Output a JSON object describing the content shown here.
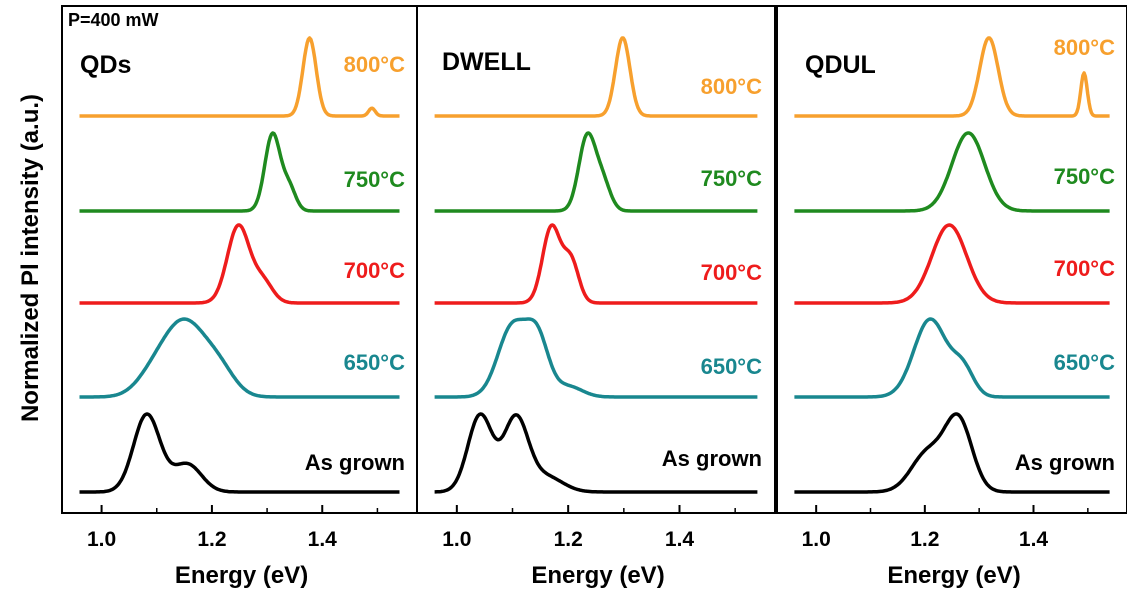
{
  "figure": {
    "ylabel": "Normalized Pl intensity (a.u.)",
    "power_label": "P=400 mW",
    "colors": {
      "800°C": "#f7a02e",
      "750°C": "#1f8a1f",
      "700°C": "#ee1c1c",
      "650°C": "#19878f",
      "As grown": "#000000"
    }
  },
  "chart_data": [
    {
      "type": "line",
      "title": "QDs",
      "xlabel": "Energy (eV)",
      "xlim": [
        0.95,
        1.55
      ],
      "xticks": [
        1.0,
        1.2,
        1.4
      ],
      "xtick_labels": [
        "1.0",
        "1.2",
        "1.4"
      ],
      "series": [
        {
          "name": "As grown",
          "peaks": [
            [
              1.082,
              1.0,
              0.024
            ],
            [
              1.155,
              0.36,
              0.026
            ]
          ]
        },
        {
          "name": "650°C",
          "peaks": [
            [
              1.15,
              1.0,
              0.04
            ],
            [
              1.215,
              0.28,
              0.028
            ],
            [
              1.09,
              0.18,
              0.03
            ]
          ]
        },
        {
          "name": "700°C",
          "peaks": [
            [
              1.248,
              1.0,
              0.02
            ],
            [
              1.292,
              0.28,
              0.018
            ]
          ]
        },
        {
          "name": "750°C",
          "peaks": [
            [
              1.31,
              1.0,
              0.014
            ],
            [
              1.34,
              0.3,
              0.012
            ]
          ]
        },
        {
          "name": "800°C",
          "peaks": [
            [
              1.377,
              1.0,
              0.012
            ],
            [
              1.49,
              0.1,
              0.006
            ]
          ]
        }
      ]
    },
    {
      "type": "line",
      "title": "DWELL",
      "xlabel": "Energy (eV)",
      "xlim": [
        0.95,
        1.55
      ],
      "xticks": [
        1.0,
        1.2,
        1.4
      ],
      "xtick_labels": [
        "1.0",
        "1.2",
        "1.4"
      ],
      "series": [
        {
          "name": "As grown",
          "peaks": [
            [
              1.042,
              1.0,
              0.022
            ],
            [
              1.106,
              0.95,
              0.022
            ],
            [
              1.16,
              0.2,
              0.03
            ]
          ]
        },
        {
          "name": "650°C",
          "peaks": [
            [
              1.1,
              1.0,
              0.026
            ],
            [
              1.145,
              0.78,
              0.02
            ],
            [
              1.2,
              0.15,
              0.025
            ]
          ]
        },
        {
          "name": "700°C",
          "peaks": [
            [
              1.17,
              1.0,
              0.016
            ],
            [
              1.205,
              0.55,
              0.014
            ]
          ]
        },
        {
          "name": "750°C",
          "peaks": [
            [
              1.234,
              1.0,
              0.015
            ],
            [
              1.262,
              0.38,
              0.014
            ]
          ]
        },
        {
          "name": "800°C",
          "peaks": [
            [
              1.298,
              1.0,
              0.013
            ]
          ]
        }
      ]
    },
    {
      "type": "line",
      "title": "QDUL",
      "xlabel": "Energy (eV)",
      "xlim": [
        0.95,
        1.55
      ],
      "xticks": [
        1.0,
        1.2,
        1.4
      ],
      "xtick_labels": [
        "1.0",
        "1.2",
        "1.4"
      ],
      "series": [
        {
          "name": "As grown",
          "peaks": [
            [
              1.262,
              1.0,
              0.025
            ],
            [
              1.205,
              0.55,
              0.03
            ]
          ]
        },
        {
          "name": "650°C",
          "peaks": [
            [
              1.21,
              1.0,
              0.03
            ],
            [
              1.27,
              0.35,
              0.02
            ]
          ]
        },
        {
          "name": "700°C",
          "peaks": [
            [
              1.245,
              1.0,
              0.032
            ]
          ]
        },
        {
          "name": "750°C",
          "peaks": [
            [
              1.28,
              1.0,
              0.03
            ]
          ]
        },
        {
          "name": "800°C",
          "peaks": [
            [
              1.318,
              1.0,
              0.017
            ],
            [
              1.493,
              0.55,
              0.006
            ]
          ]
        }
      ]
    }
  ]
}
